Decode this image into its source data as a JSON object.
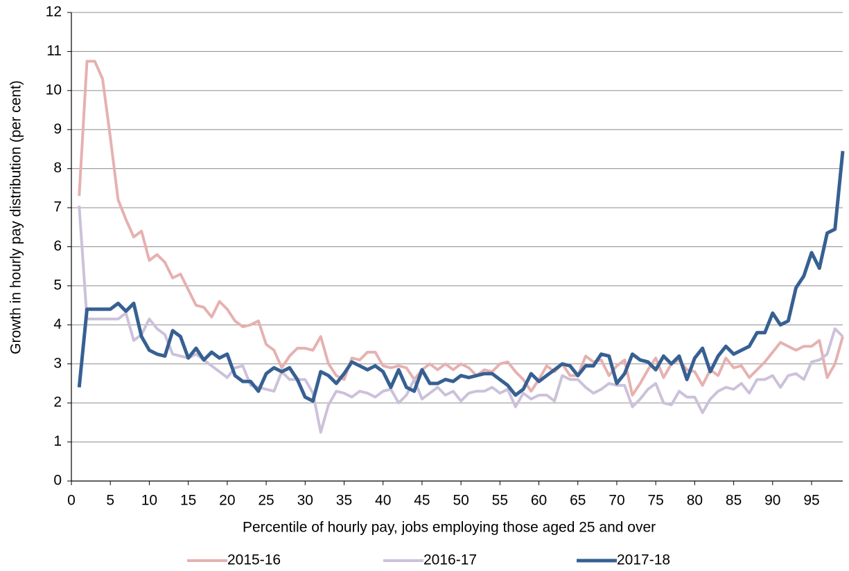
{
  "chart_data": {
    "type": "line",
    "xlabel": "Percentile of hourly pay, jobs employing those aged 25 and over",
    "ylabel": "Growth in hourly pay distribution (per cent)",
    "x": [
      1,
      2,
      3,
      4,
      5,
      6,
      7,
      8,
      9,
      10,
      11,
      12,
      13,
      14,
      15,
      16,
      17,
      18,
      19,
      20,
      21,
      22,
      23,
      24,
      25,
      26,
      27,
      28,
      29,
      30,
      31,
      32,
      33,
      34,
      35,
      36,
      37,
      38,
      39,
      40,
      41,
      42,
      43,
      44,
      45,
      46,
      47,
      48,
      49,
      50,
      51,
      52,
      53,
      54,
      55,
      56,
      57,
      58,
      59,
      60,
      61,
      62,
      63,
      64,
      65,
      66,
      67,
      68,
      69,
      70,
      71,
      72,
      73,
      74,
      75,
      76,
      77,
      78,
      79,
      80,
      81,
      82,
      83,
      84,
      85,
      86,
      87,
      88,
      89,
      90,
      91,
      92,
      93,
      94,
      95,
      96,
      97,
      98,
      99
    ],
    "series": [
      {
        "name": "2015-16",
        "color": "#e6b1b0",
        "values": [
          7.3,
          10.75,
          10.75,
          10.3,
          8.8,
          7.2,
          6.7,
          6.25,
          6.4,
          5.65,
          5.8,
          5.6,
          5.2,
          5.3,
          4.9,
          4.5,
          4.45,
          4.2,
          4.6,
          4.4,
          4.1,
          3.95,
          4.0,
          4.1,
          3.5,
          3.35,
          2.9,
          3.2,
          3.4,
          3.4,
          3.35,
          3.7,
          3.0,
          2.7,
          2.6,
          3.15,
          3.1,
          3.3,
          3.3,
          2.95,
          2.9,
          2.95,
          2.9,
          2.6,
          2.85,
          3.0,
          2.85,
          3.0,
          2.85,
          3.0,
          2.9,
          2.7,
          2.85,
          2.8,
          3.0,
          3.05,
          2.8,
          2.6,
          2.3,
          2.6,
          2.95,
          2.8,
          3.0,
          2.7,
          2.7,
          3.2,
          3.05,
          3.1,
          2.7,
          2.95,
          3.1,
          2.2,
          2.5,
          2.85,
          3.15,
          2.65,
          3.0,
          3.1,
          2.85,
          2.8,
          2.45,
          2.85,
          2.7,
          3.15,
          2.9,
          2.95,
          2.65,
          2.85,
          3.05,
          3.3,
          3.55,
          3.45,
          3.35,
          3.45,
          3.45,
          3.6,
          2.65,
          3.0,
          3.7
        ]
      },
      {
        "name": "2016-17",
        "color": "#ccc1da",
        "values": [
          7.05,
          4.15,
          4.15,
          4.15,
          4.15,
          4.15,
          4.3,
          3.6,
          3.75,
          4.15,
          3.9,
          3.75,
          3.25,
          3.2,
          3.15,
          3.25,
          3.1,
          2.95,
          2.8,
          2.65,
          2.9,
          2.95,
          2.45,
          2.4,
          2.35,
          2.3,
          2.8,
          2.6,
          2.6,
          2.6,
          2.25,
          1.25,
          1.95,
          2.3,
          2.25,
          2.15,
          2.3,
          2.25,
          2.15,
          2.3,
          2.35,
          2.0,
          2.2,
          2.6,
          2.1,
          2.25,
          2.4,
          2.2,
          2.3,
          2.05,
          2.25,
          2.3,
          2.3,
          2.4,
          2.25,
          2.35,
          1.9,
          2.25,
          2.1,
          2.2,
          2.2,
          2.05,
          2.7,
          2.6,
          2.6,
          2.4,
          2.25,
          2.35,
          2.5,
          2.45,
          2.45,
          1.9,
          2.1,
          2.35,
          2.5,
          2.0,
          1.95,
          2.3,
          2.15,
          2.15,
          1.75,
          2.1,
          2.3,
          2.4,
          2.35,
          2.5,
          2.25,
          2.6,
          2.6,
          2.7,
          2.4,
          2.7,
          2.75,
          2.6,
          3.05,
          3.1,
          3.25,
          3.9,
          3.7
        ]
      },
      {
        "name": "2017-18",
        "color": "#376092",
        "values": [
          2.4,
          4.4,
          4.4,
          4.4,
          4.4,
          4.55,
          4.35,
          4.55,
          3.7,
          3.35,
          3.25,
          3.2,
          3.85,
          3.7,
          3.15,
          3.4,
          3.1,
          3.3,
          3.15,
          3.25,
          2.7,
          2.55,
          2.55,
          2.3,
          2.75,
          2.9,
          2.8,
          2.9,
          2.6,
          2.15,
          2.05,
          2.8,
          2.7,
          2.5,
          2.75,
          3.05,
          2.95,
          2.85,
          2.95,
          2.8,
          2.4,
          2.85,
          2.4,
          2.3,
          2.85,
          2.5,
          2.5,
          2.6,
          2.55,
          2.7,
          2.65,
          2.7,
          2.75,
          2.75,
          2.6,
          2.45,
          2.2,
          2.35,
          2.75,
          2.55,
          2.7,
          2.85,
          3.0,
          2.95,
          2.7,
          2.95,
          2.95,
          3.25,
          3.2,
          2.5,
          2.75,
          3.25,
          3.1,
          3.05,
          2.85,
          3.2,
          3.0,
          3.2,
          2.6,
          3.15,
          3.4,
          2.8,
          3.2,
          3.45,
          3.25,
          3.35,
          3.45,
          3.8,
          3.8,
          4.3,
          4.0,
          4.1,
          4.95,
          5.25,
          5.85,
          5.45,
          6.35,
          6.45,
          8.45
        ]
      }
    ],
    "xlim": [
      0,
      99
    ],
    "xticks": [
      0,
      5,
      10,
      15,
      20,
      25,
      30,
      35,
      40,
      45,
      50,
      55,
      60,
      65,
      70,
      75,
      80,
      85,
      90,
      95
    ],
    "ylim": [
      0,
      12
    ],
    "yticks": [
      0,
      1,
      2,
      3,
      4,
      5,
      6,
      7,
      8,
      9,
      10,
      11,
      12
    ],
    "grid": true,
    "legend": "bottom"
  }
}
